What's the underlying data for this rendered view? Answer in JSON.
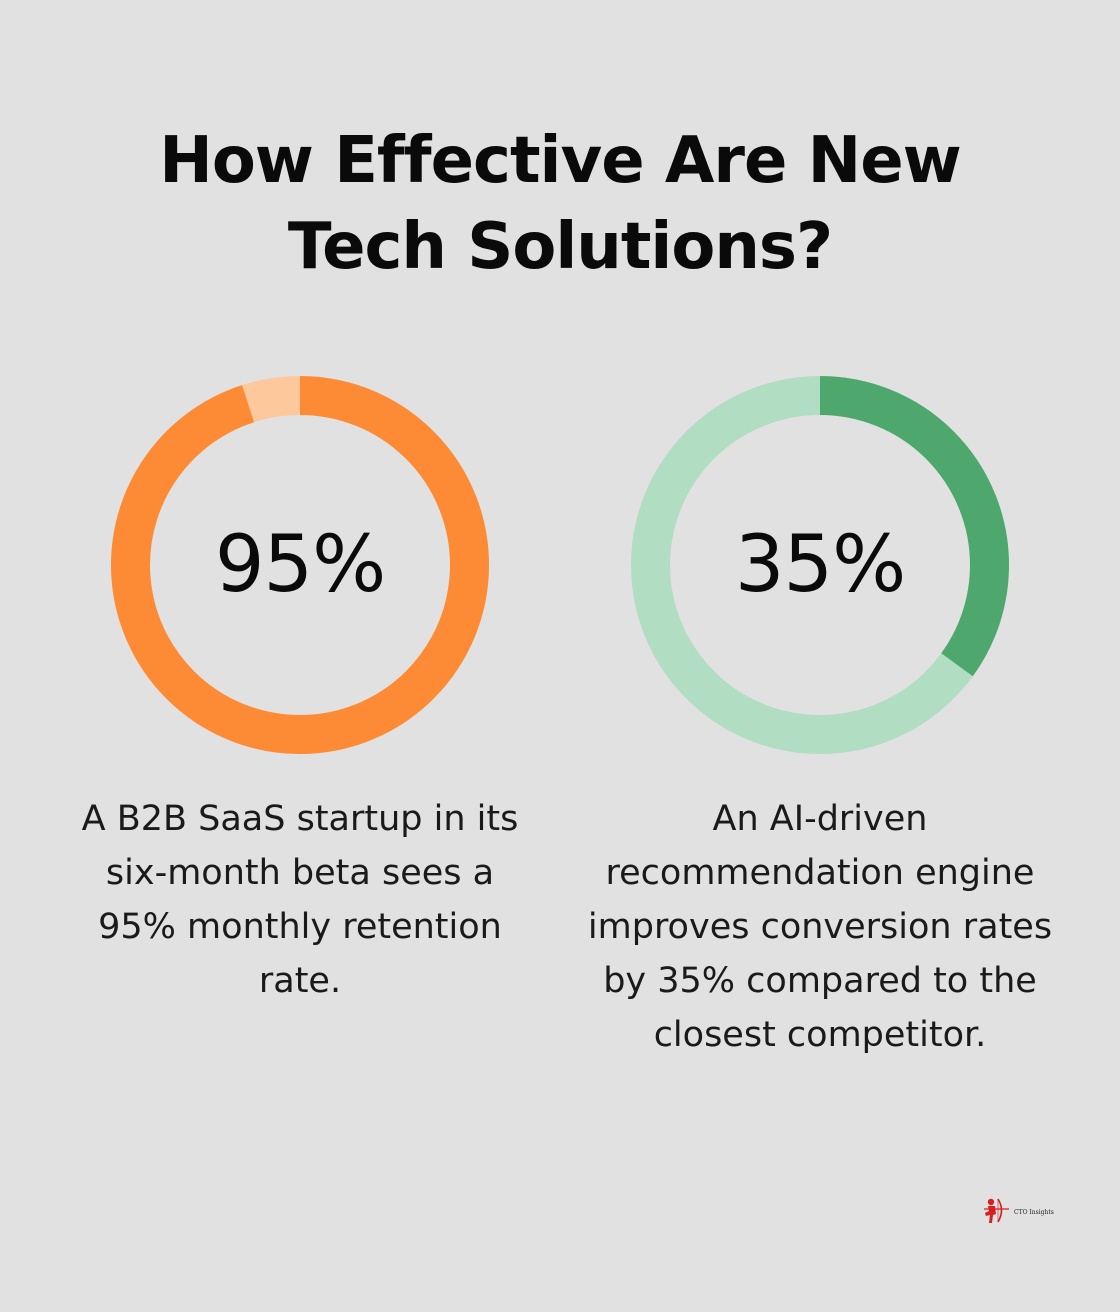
{
  "title": {
    "line1": "How Effective Are New",
    "line2": "Tech Solutions?"
  },
  "chart_data": [
    {
      "type": "pie",
      "value": 95,
      "label": "95%",
      "caption": "A B2B SaaS startup in its six-month beta sees a 95% monthly retention rate.",
      "caption_lines": [
        "A B2B SaaS startup in its",
        "six-month beta sees a",
        "95% monthly retention",
        "rate."
      ],
      "colors": {
        "fill": "#fd8b36",
        "track": "#fec89d"
      }
    },
    {
      "type": "pie",
      "value": 35,
      "label": "35%",
      "caption": "An AI-driven recommendation engine improves conversion rates by 35% compared to the closest competitor.",
      "caption_lines": [
        "An AI-driven",
        "recommendation engine",
        "improves conversion rates",
        "by 35% compared to the",
        "closest competitor."
      ],
      "colors": {
        "fill": "#4ea86d",
        "track": "#b1ddc2"
      }
    }
  ],
  "logo": {
    "text": "CTO Insights",
    "icon": "archer-icon",
    "color": "#d81e1e"
  }
}
